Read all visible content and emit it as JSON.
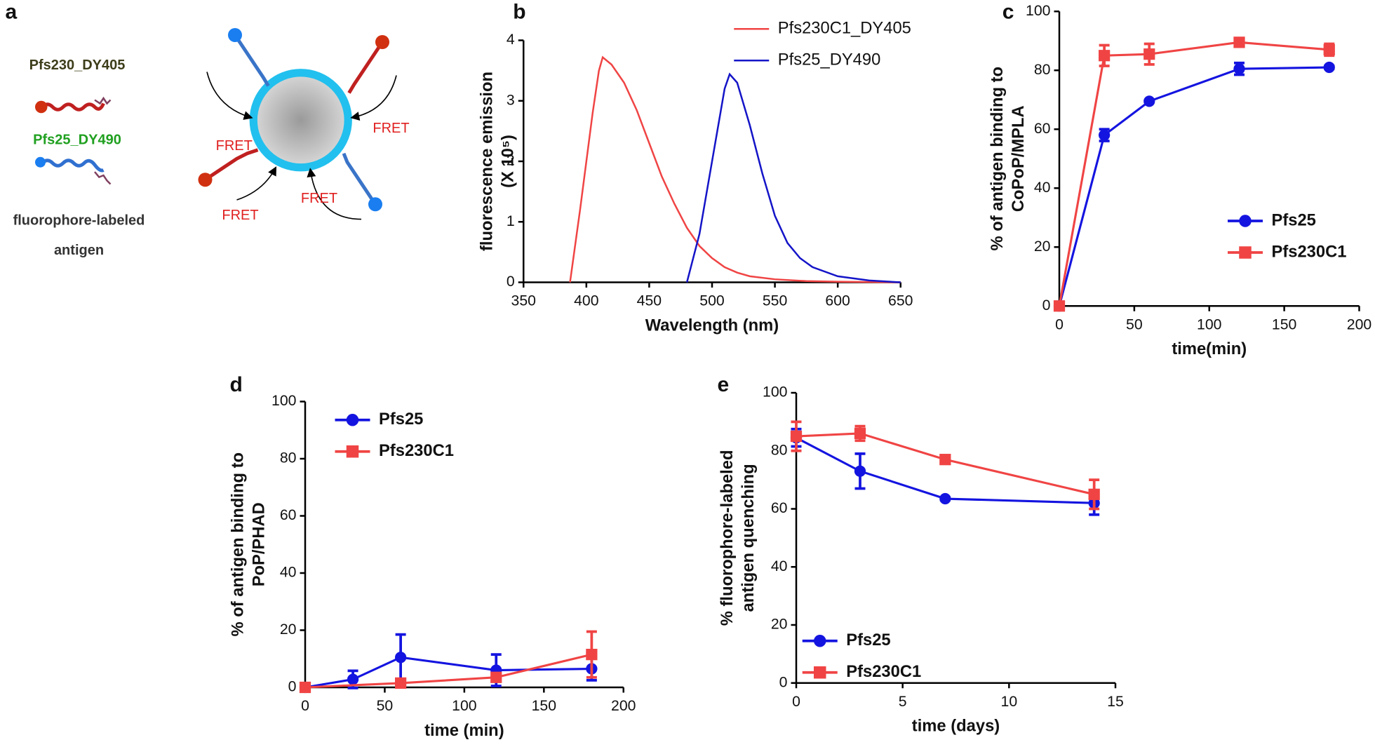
{
  "diagram": {
    "panel": "a",
    "labels": [
      "Pfs230_DY405",
      "Pfs25_DY490"
    ],
    "caption": [
      "fluorophore-labeled",
      "antigen"
    ],
    "fret": [
      "FRET",
      "FRET",
      "FRET",
      "FRET"
    ]
  },
  "chart_data": [
    {
      "type": "line",
      "panel": "b",
      "xlabel": "Wavelength (nm)",
      "ylabel": [
        "fluorescence emission",
        "(X 10⁵)"
      ],
      "xlim": [
        350,
        650
      ],
      "ylim": [
        0,
        4
      ],
      "xticks": [
        350,
        400,
        450,
        500,
        550,
        600,
        650
      ],
      "yticks": [
        0,
        1,
        2,
        3,
        4
      ],
      "legend": "upper-right",
      "series": [
        {
          "name": "Pfs230C1_DY405",
          "color": "#f04444",
          "x": [
            387,
            395,
            400,
            405,
            410,
            413,
            420,
            430,
            440,
            450,
            460,
            470,
            480,
            490,
            500,
            510,
            520,
            530,
            550,
            575,
            600,
            650
          ],
          "values": [
            0,
            1.2,
            2.0,
            2.8,
            3.5,
            3.72,
            3.6,
            3.3,
            2.85,
            2.3,
            1.75,
            1.3,
            0.9,
            0.6,
            0.4,
            0.25,
            0.16,
            0.1,
            0.05,
            0.02,
            0.01,
            0
          ]
        },
        {
          "name": "Pfs25_DY490",
          "color": "#1414c8",
          "x": [
            480,
            490,
            500,
            510,
            514,
            520,
            530,
            540,
            550,
            560,
            570,
            580,
            600,
            625,
            650
          ],
          "values": [
            0,
            0.8,
            2.0,
            3.2,
            3.44,
            3.3,
            2.6,
            1.8,
            1.1,
            0.65,
            0.4,
            0.25,
            0.1,
            0.03,
            0
          ]
        }
      ]
    },
    {
      "type": "line",
      "panel": "c",
      "xlabel": "time(min)",
      "ylabel": [
        "% of antigen binding to",
        "CoPoP/MPLA"
      ],
      "xlim": [
        0,
        200
      ],
      "ylim": [
        0,
        100
      ],
      "xticks": [
        0,
        50,
        100,
        150,
        200
      ],
      "yticks": [
        0,
        20,
        40,
        60,
        80,
        100
      ],
      "legend": "lower-right",
      "series": [
        {
          "name": "Pfs25",
          "color": "#1414e0",
          "marker": "circle",
          "x": [
            0,
            30,
            60,
            120,
            180
          ],
          "values": [
            0,
            58,
            69.5,
            80.5,
            81
          ],
          "errors": [
            0,
            2,
            0,
            2,
            0.5
          ]
        },
        {
          "name": "Pfs230C1",
          "color": "#f04444",
          "marker": "square",
          "x": [
            0,
            30,
            60,
            120,
            180
          ],
          "values": [
            0,
            85,
            85.5,
            89.5,
            87
          ],
          "errors": [
            0,
            3.5,
            3.5,
            1,
            2
          ]
        }
      ]
    },
    {
      "type": "line",
      "panel": "d",
      "xlabel": "time (min)",
      "ylabel": [
        "% of antigen binding to",
        "PoP/PHAD"
      ],
      "xlim": [
        0,
        200
      ],
      "ylim": [
        0,
        100
      ],
      "xticks": [
        0,
        50,
        100,
        150,
        200
      ],
      "yticks": [
        0,
        20,
        40,
        60,
        80,
        100
      ],
      "legend": "upper-left",
      "series": [
        {
          "name": "Pfs25",
          "color": "#1414e0",
          "marker": "circle",
          "x": [
            0,
            30,
            60,
            120,
            180
          ],
          "values": [
            0,
            2.8,
            10.5,
            6,
            6.5
          ],
          "errors": [
            0,
            3,
            8,
            5.5,
            4
          ]
        },
        {
          "name": "Pfs230C1",
          "color": "#f04444",
          "marker": "square",
          "x": [
            0,
            60,
            120,
            180
          ],
          "values": [
            0,
            1.5,
            3.5,
            11.5
          ],
          "errors": [
            0,
            0,
            0,
            8
          ]
        }
      ]
    },
    {
      "type": "line",
      "panel": "e",
      "xlabel": "time (days)",
      "ylabel": [
        "% fluorophore-labeled",
        "antigen quenching"
      ],
      "xlim": [
        0,
        15
      ],
      "ylim": [
        0,
        100
      ],
      "xticks": [
        0,
        5,
        10,
        15
      ],
      "yticks": [
        0,
        20,
        40,
        60,
        80,
        100
      ],
      "legend": "lower-left",
      "series": [
        {
          "name": "Pfs25",
          "color": "#1414e0",
          "marker": "circle",
          "x": [
            0,
            3,
            7,
            14
          ],
          "values": [
            84.5,
            73,
            63.5,
            62
          ],
          "errors": [
            3,
            6,
            0.5,
            4
          ]
        },
        {
          "name": "Pfs230C1",
          "color": "#f04444",
          "marker": "square",
          "x": [
            0,
            3,
            7,
            14
          ],
          "values": [
            85,
            86,
            77,
            65
          ],
          "errors": [
            5,
            2.5,
            0.5,
            5
          ]
        }
      ]
    }
  ]
}
